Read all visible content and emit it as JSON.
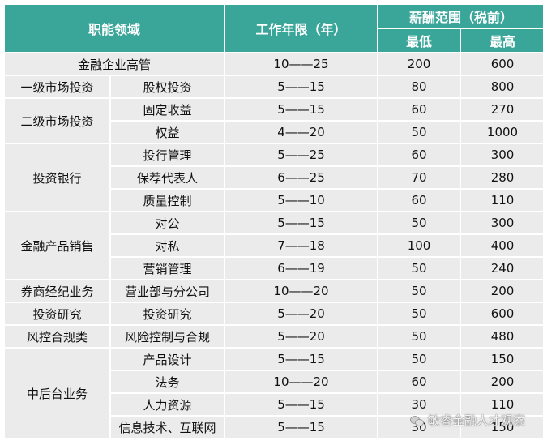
{
  "table": {
    "headers": {
      "domain": "职能领域",
      "years": "工作年限（年）",
      "salary": "薪酬范围（税前）",
      "min": "最低",
      "max": "最高"
    },
    "rows": [
      {
        "group": "金融企业高管",
        "years": "10——25",
        "min": "200",
        "max": "600"
      },
      {
        "group": "一级市场投资",
        "role": "股权投资",
        "years": "5——15",
        "min": "80",
        "max": "800"
      },
      {
        "group": "二级市场投资",
        "role": "固定收益",
        "years": "5——15",
        "min": "60",
        "max": "270"
      },
      {
        "role": "权益",
        "years": "4——20",
        "min": "50",
        "max": "1000"
      },
      {
        "group": "投资银行",
        "role": "投行管理",
        "years": "5——25",
        "min": "60",
        "max": "300"
      },
      {
        "role": "保荐代表人",
        "years": "6——25",
        "min": "70",
        "max": "280"
      },
      {
        "role": "质量控制",
        "years": "5——10",
        "min": "60",
        "max": "110"
      },
      {
        "group": "金融产品销售",
        "role": "对公",
        "years": "5——15",
        "min": "50",
        "max": "300"
      },
      {
        "role": "对私",
        "years": "7——18",
        "min": "100",
        "max": "400"
      },
      {
        "role": "营销管理",
        "years": "6——19",
        "min": "50",
        "max": "240"
      },
      {
        "group": "券商经纪业务",
        "role": "营业部与分公司",
        "years": "10——20",
        "min": "50",
        "max": "200"
      },
      {
        "group": "投资研究",
        "role": "投资研究",
        "years": "5——20",
        "min": "50",
        "max": "600"
      },
      {
        "group": "风控合规类",
        "role": "风险控制与合规",
        "years": "5——20",
        "min": "50",
        "max": "480"
      },
      {
        "group": "中后台业务",
        "role": "产品设计",
        "years": "5——15",
        "min": "50",
        "max": "150"
      },
      {
        "role": "法务",
        "years": "10——20",
        "min": "60",
        "max": "200"
      },
      {
        "role": "人力资源",
        "years": "5——15",
        "min": "30",
        "max": "110"
      },
      {
        "role": "信息技术、互联网",
        "years": "5——15",
        "min": "30",
        "max": "150"
      }
    ]
  },
  "watermark": {
    "text": "敏睿金融人才观察",
    "icon": "wechat-icon"
  }
}
